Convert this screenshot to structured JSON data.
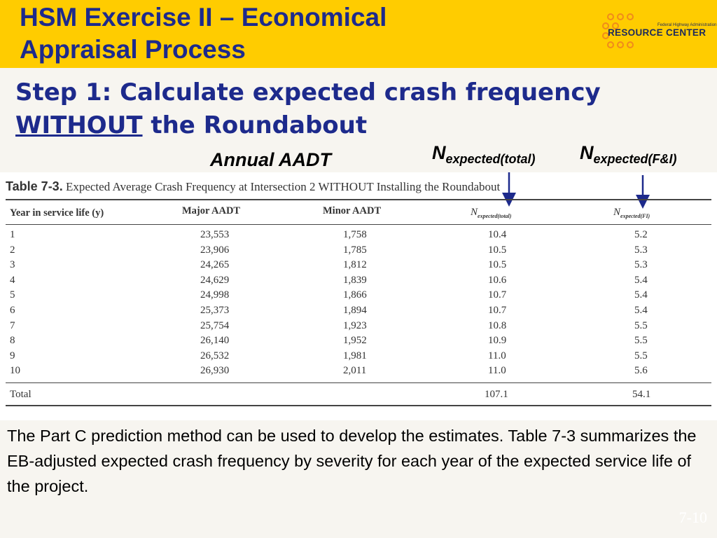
{
  "header": {
    "title_line1": "HSM Exercise II – Economical",
    "title_line2": "Appraisal Process",
    "logo_small": "Federal Highway Administration",
    "logo_big": "RESOURCE CENTER"
  },
  "step": {
    "line1": "Step 1: Calculate expected crash frequency",
    "without": "WITHOUT",
    "rest": " the Roundabout"
  },
  "annotations": {
    "annual_aadt": "Annual AADT",
    "n_total_base": "N",
    "n_total_sub": "expected(total)",
    "n_fi_base": "N",
    "n_fi_sub": "expected(F&I)"
  },
  "table": {
    "caption_label": "Table 7-3.",
    "caption_text": " Expected Average Crash Frequency at Intersection 2 WITHOUT Installing the Roundabout",
    "headers": {
      "year": "Year in service life (y)",
      "major": "Major AADT",
      "minor": "Minor AADT",
      "n_total_base": "N",
      "n_total_sub": "expected(total)",
      "n_fi_base": "N",
      "n_fi_sub": "expected(FI)"
    },
    "rows": [
      {
        "year": "1",
        "major": "23,553",
        "minor": "1,758",
        "total": "10.4",
        "fi": "5.2"
      },
      {
        "year": "2",
        "major": "23,906",
        "minor": "1,785",
        "total": "10.5",
        "fi": "5.3"
      },
      {
        "year": "3",
        "major": "24,265",
        "minor": "1,812",
        "total": "10.5",
        "fi": "5.3"
      },
      {
        "year": "4",
        "major": "24,629",
        "minor": "1,839",
        "total": "10.6",
        "fi": "5.4"
      },
      {
        "year": "5",
        "major": "24,998",
        "minor": "1,866",
        "total": "10.7",
        "fi": "5.4"
      },
      {
        "year": "6",
        "major": "25,373",
        "minor": "1,894",
        "total": "10.7",
        "fi": "5.4"
      },
      {
        "year": "7",
        "major": "25,754",
        "minor": "1,923",
        "total": "10.8",
        "fi": "5.5"
      },
      {
        "year": "8",
        "major": "26,140",
        "minor": "1,952",
        "total": "10.9",
        "fi": "5.5"
      },
      {
        "year": "9",
        "major": "26,532",
        "minor": "1,981",
        "total": "11.0",
        "fi": "5.5"
      },
      {
        "year": "10",
        "major": "26,930",
        "minor": "2,011",
        "total": "11.0",
        "fi": "5.6"
      }
    ],
    "total_row": {
      "label": "Total",
      "total": "107.1",
      "fi": "54.1"
    }
  },
  "body_text": "The Part C prediction method can be used to develop the estimates. Table 7-3 summarizes the EB-adjusted expected crash frequency by severity for each year of the expected service life of the project.",
  "footer": {
    "page_number": "7-10"
  },
  "colors": {
    "header_bg": "#ffcc00",
    "title_blue": "#1d2a8c",
    "footer_navy": "#17375e"
  }
}
